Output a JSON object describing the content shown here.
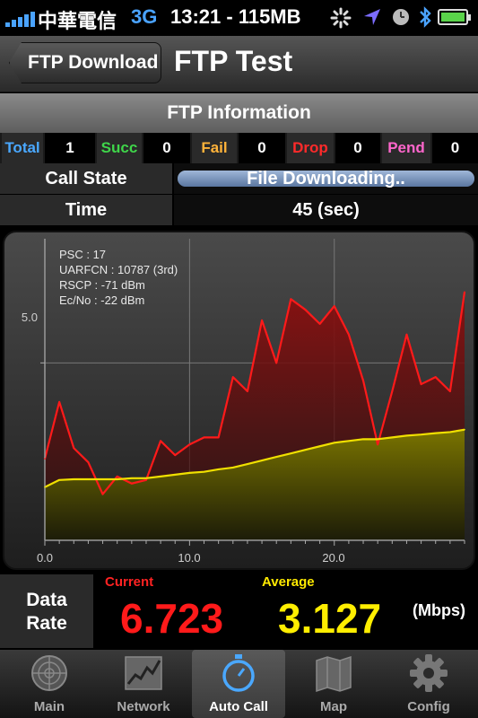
{
  "status_bar": {
    "carrier": "中華電信",
    "network": "3G",
    "time_info": "13:21 - 115MB"
  },
  "nav": {
    "back_label": "FTP Download",
    "title": "FTP Test"
  },
  "section": {
    "title": "FTP Information"
  },
  "stats": [
    {
      "label": "Total",
      "value": "1",
      "color": "#4aa8ff"
    },
    {
      "label": "Succ",
      "value": "0",
      "color": "#3fd54a"
    },
    {
      "label": "Fail",
      "value": "0",
      "color": "#ffb33a"
    },
    {
      "label": "Drop",
      "value": "0",
      "color": "#ff2a2a"
    },
    {
      "label": "Pend",
      "value": "0",
      "color": "#ff66cc"
    }
  ],
  "call_state": {
    "label": "Call State",
    "value": "File Downloading..",
    "progress": 1.0
  },
  "time": {
    "label": "Time",
    "value": "45 (sec)"
  },
  "chart_data": {
    "type": "area",
    "info_lines": [
      "PSC : 17",
      "UARFCN : 10787 (3rd)",
      "RSCP : -71 dBm",
      "Ec/No : -22 dBm"
    ],
    "x_ticks": [
      "0.0",
      "10.0",
      "20.0"
    ],
    "y_ticks": [
      "5.0"
    ],
    "xlim": [
      0,
      29
    ],
    "ylim": [
      0,
      8.5
    ],
    "grid": true,
    "series": [
      {
        "color": "#ff1a1a",
        "x": [
          0,
          1,
          2,
          3,
          4,
          5,
          6,
          7,
          8,
          9,
          10,
          11,
          12,
          13,
          14,
          15,
          16,
          17,
          18,
          19,
          20,
          21,
          22,
          23,
          24,
          25,
          26,
          27,
          28,
          29
        ],
        "values": [
          2.3,
          3.9,
          2.6,
          2.2,
          1.3,
          1.8,
          1.6,
          1.7,
          2.8,
          2.4,
          2.7,
          2.9,
          2.9,
          4.6,
          4.2,
          6.2,
          5.0,
          6.8,
          6.5,
          6.1,
          6.6,
          5.8,
          4.5,
          2.7,
          4.2,
          5.8,
          4.4,
          4.6,
          4.2,
          7.0
        ]
      },
      {
        "color": "#f0e000",
        "x": [
          0,
          1,
          2,
          3,
          4,
          5,
          6,
          7,
          8,
          9,
          10,
          11,
          12,
          13,
          14,
          15,
          16,
          17,
          18,
          19,
          20,
          21,
          22,
          23,
          24,
          25,
          26,
          27,
          28,
          29
        ],
        "values": [
          1.5,
          1.7,
          1.72,
          1.72,
          1.72,
          1.72,
          1.75,
          1.75,
          1.8,
          1.85,
          1.9,
          1.93,
          2.0,
          2.05,
          2.15,
          2.25,
          2.35,
          2.45,
          2.55,
          2.65,
          2.75,
          2.8,
          2.85,
          2.85,
          2.9,
          2.95,
          2.98,
          3.02,
          3.05,
          3.12
        ]
      }
    ]
  },
  "data_rate": {
    "label_line1": "Data",
    "label_line2": "Rate",
    "current_label": "Current",
    "current_value": "6.723",
    "average_label": "Average",
    "average_value": "3.127",
    "unit": "(Mbps)"
  },
  "tabs": [
    {
      "label": "Main",
      "icon": "radar-icon",
      "active": false
    },
    {
      "label": "Network",
      "icon": "line-chart-icon",
      "active": false
    },
    {
      "label": "Auto Call",
      "icon": "stopwatch-icon",
      "active": true
    },
    {
      "label": "Map",
      "icon": "map-icon",
      "active": false
    },
    {
      "label": "Config",
      "icon": "gear-icon",
      "active": false
    }
  ]
}
